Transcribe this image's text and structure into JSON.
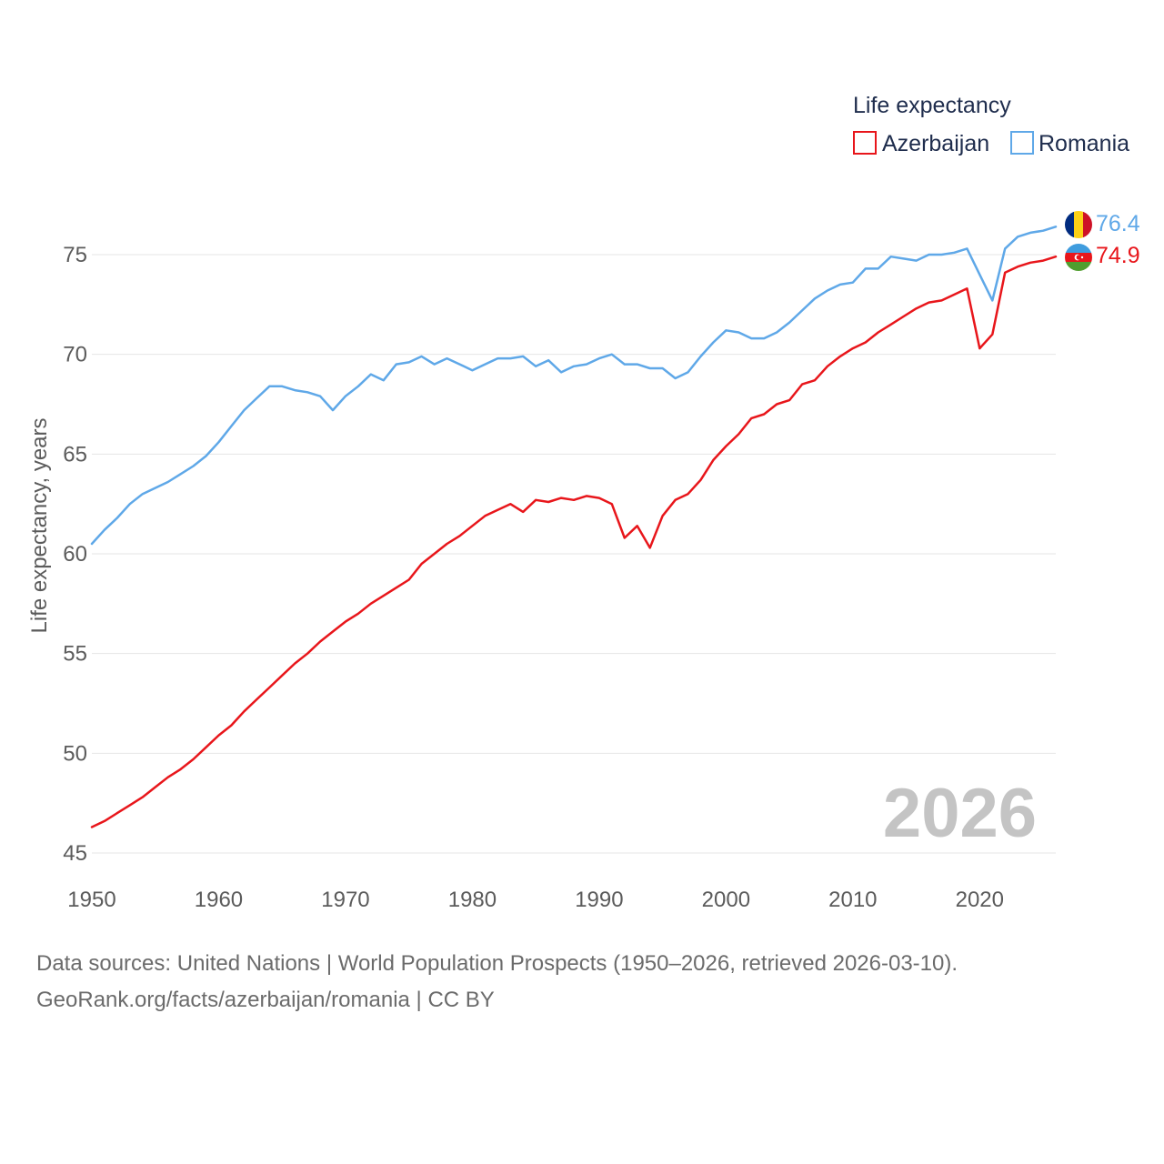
{
  "chart_data": {
    "type": "line",
    "title": "",
    "xlabel": "",
    "ylabel": "Life expectancy, years",
    "xlim": [
      1950,
      2026
    ],
    "ylim": [
      45,
      77.5
    ],
    "xticks": [
      "1950",
      "1960",
      "1970",
      "1980",
      "1990",
      "2000",
      "2010",
      "2020"
    ],
    "yticks": [
      "45",
      "50",
      "55",
      "60",
      "65",
      "70",
      "75"
    ],
    "grid": true,
    "legend": {
      "title": "Life expectancy",
      "position": "top-right"
    },
    "watermark_year": "2026",
    "x": [
      1950,
      1951,
      1952,
      1953,
      1954,
      1955,
      1956,
      1957,
      1958,
      1959,
      1960,
      1961,
      1962,
      1963,
      1964,
      1965,
      1966,
      1967,
      1968,
      1969,
      1970,
      1971,
      1972,
      1973,
      1974,
      1975,
      1976,
      1977,
      1978,
      1979,
      1980,
      1981,
      1982,
      1983,
      1984,
      1985,
      1986,
      1987,
      1988,
      1989,
      1990,
      1991,
      1992,
      1993,
      1994,
      1995,
      1996,
      1997,
      1998,
      1999,
      2000,
      2001,
      2002,
      2003,
      2004,
      2005,
      2006,
      2007,
      2008,
      2009,
      2010,
      2011,
      2012,
      2013,
      2014,
      2015,
      2016,
      2017,
      2018,
      2019,
      2020,
      2021,
      2022,
      2023,
      2024,
      2025,
      2026
    ],
    "series": [
      {
        "name": "Azerbaijan",
        "color": "#e8161b",
        "flag": "azerbaijan-flag",
        "end_label": "74.9",
        "values": [
          46.3,
          46.6,
          47.0,
          47.4,
          47.8,
          48.3,
          48.8,
          49.2,
          49.7,
          50.3,
          50.9,
          51.4,
          52.1,
          52.7,
          53.3,
          53.9,
          54.5,
          55.0,
          55.6,
          56.1,
          56.6,
          57.0,
          57.5,
          57.9,
          58.3,
          58.7,
          59.5,
          60.0,
          60.5,
          60.9,
          61.4,
          61.9,
          62.2,
          62.5,
          62.1,
          62.7,
          62.6,
          62.8,
          62.7,
          62.9,
          62.8,
          62.5,
          60.8,
          61.4,
          60.3,
          61.9,
          62.7,
          63.0,
          63.7,
          64.7,
          65.4,
          66.0,
          66.8,
          67.0,
          67.5,
          67.7,
          68.5,
          68.7,
          69.4,
          69.9,
          70.3,
          70.6,
          71.1,
          71.5,
          71.9,
          72.3,
          72.6,
          72.7,
          73.0,
          73.3,
          70.3,
          71.0,
          74.1,
          74.4,
          74.6,
          74.7,
          74.9
        ]
      },
      {
        "name": "Romania",
        "color": "#5fa8e8",
        "flag": "romania-flag",
        "end_label": "76.4",
        "values": [
          60.5,
          61.2,
          61.8,
          62.5,
          63.0,
          63.3,
          63.6,
          64.0,
          64.4,
          64.9,
          65.6,
          66.4,
          67.2,
          67.8,
          68.4,
          68.4,
          68.2,
          68.1,
          67.9,
          67.2,
          67.9,
          68.4,
          69.0,
          68.7,
          69.5,
          69.6,
          69.9,
          69.5,
          69.8,
          69.5,
          69.2,
          69.5,
          69.8,
          69.8,
          69.9,
          69.4,
          69.7,
          69.1,
          69.4,
          69.5,
          69.8,
          70.0,
          69.5,
          69.5,
          69.3,
          69.3,
          68.8,
          69.1,
          69.9,
          70.6,
          71.2,
          71.1,
          70.8,
          70.8,
          71.1,
          71.6,
          72.2,
          72.8,
          73.2,
          73.5,
          73.6,
          74.3,
          74.3,
          74.9,
          74.8,
          74.7,
          75.0,
          75.0,
          75.1,
          75.3,
          74.0,
          72.7,
          75.3,
          75.9,
          76.1,
          76.2,
          76.4
        ]
      }
    ]
  },
  "source": {
    "line1": "Data sources: United Nations | World Population Prospects (1950–2026, retrieved 2026-03-10).",
    "line2": "GeoRank.org/facts/azerbaijan/romania | CC BY"
  }
}
